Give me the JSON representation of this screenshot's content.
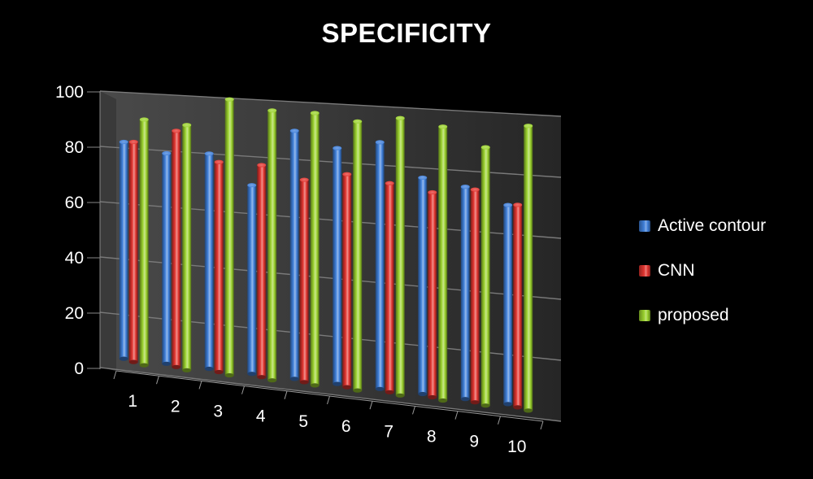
{
  "chart_data": {
    "type": "bar",
    "title": "SPECIFICITY",
    "categories": [
      "1",
      "2",
      "3",
      "4",
      "5",
      "6",
      "7",
      "8",
      "9",
      "10"
    ],
    "ylim": [
      0,
      100
    ],
    "yticks": [
      0,
      20,
      40,
      60,
      80,
      100
    ],
    "grid": true,
    "legend_position": "right",
    "series": [
      {
        "name": "Active contour",
        "color": "#3f7fd9",
        "values": [
          78,
          75,
          76,
          66,
          86,
          81,
          84,
          73,
          71,
          66
        ]
      },
      {
        "name": "CNN",
        "color": "#e23530",
        "values": [
          79,
          84,
          74,
          74,
          70,
          73,
          71,
          69,
          71,
          67
        ]
      },
      {
        "name": "proposed",
        "color": "#9bd22e",
        "values": [
          88,
          87,
          97,
          94,
          94,
          92,
          94,
          92,
          86,
          94
        ]
      }
    ]
  }
}
